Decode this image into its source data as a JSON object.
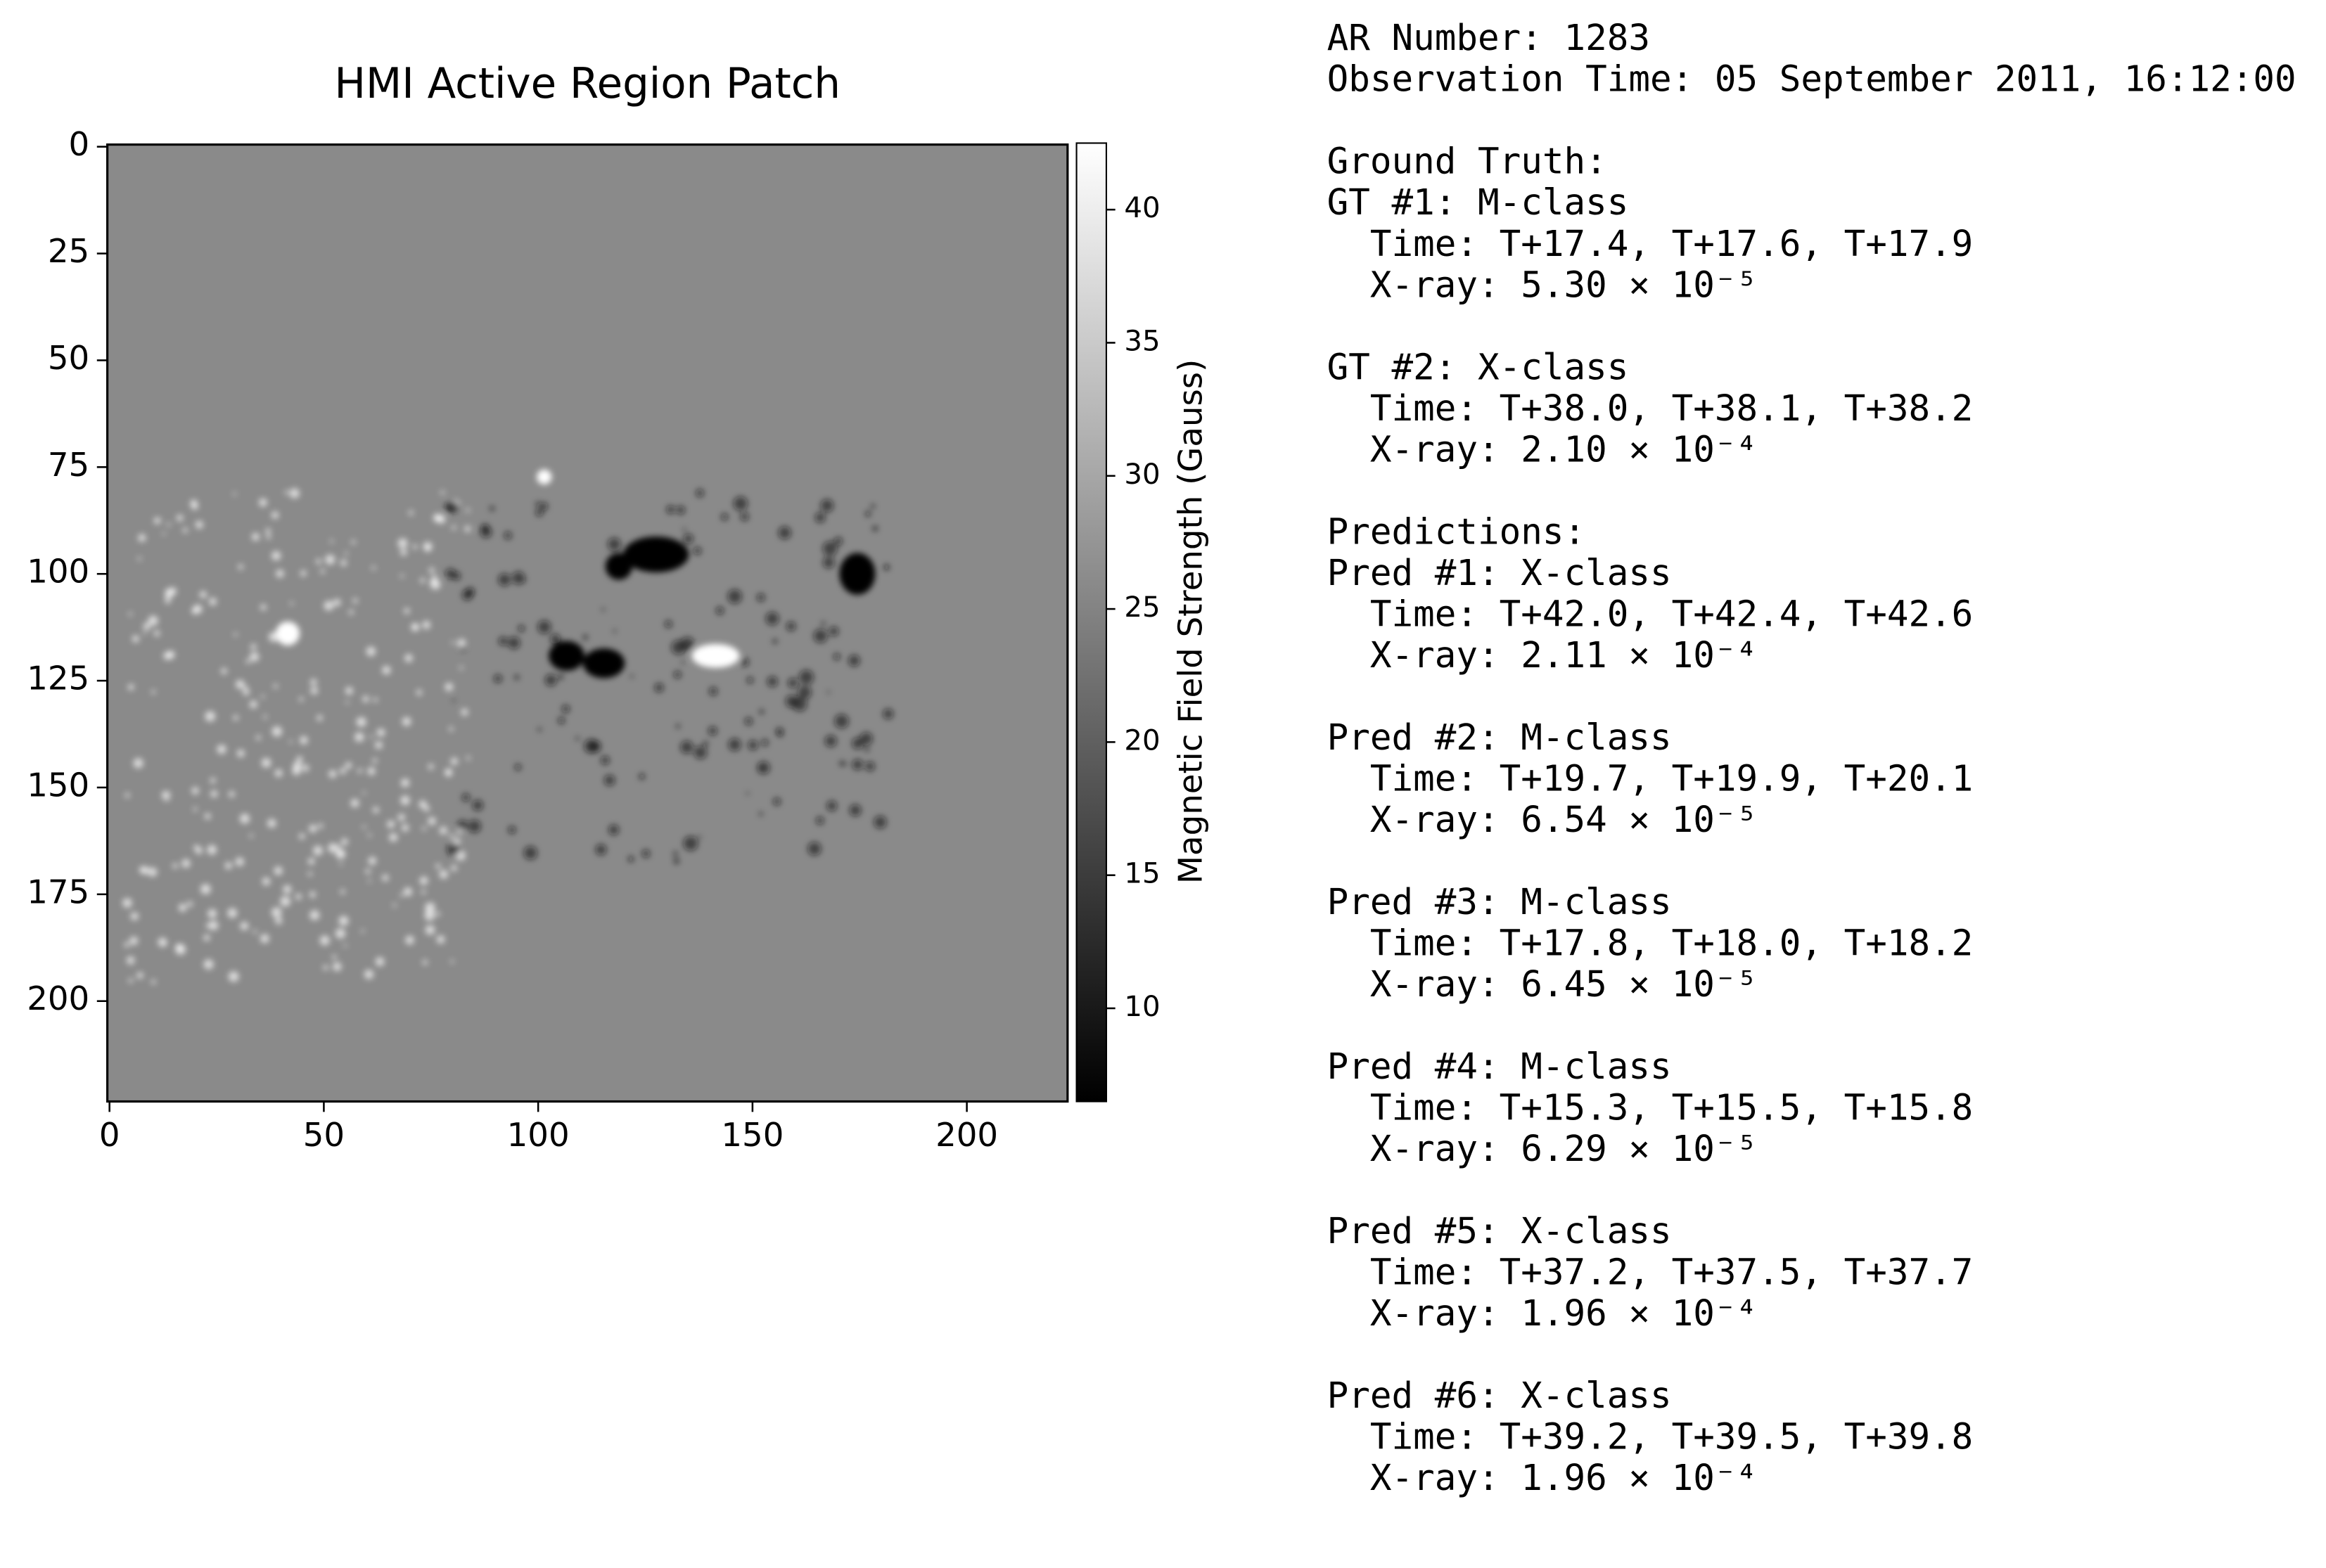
{
  "chart_data": {
    "type": "image",
    "title": "HMI Active Region Patch",
    "xlim": [
      -0.5,
      223.5
    ],
    "xticks": [
      0,
      50,
      100,
      150,
      200
    ],
    "ylim": [
      -0.5,
      223.5
    ],
    "yticks": [
      0,
      25,
      50,
      75,
      100,
      125,
      150,
      175,
      200
    ],
    "y_inverted": true,
    "colorbar": {
      "label": "Magnetic Field Strength (Gauss)",
      "lim": [
        6.5,
        42.5
      ],
      "ticks": [
        10,
        15,
        20,
        25,
        30,
        35,
        40
      ],
      "cmap": "gray"
    }
  },
  "text_panel": {
    "header": [
      "AR Number: 1283",
      "Observation Time: 05 September 2011, 16:12:00"
    ],
    "blocks": [
      [
        "Ground Truth:",
        "GT #1: M-class",
        "  Time: T+17.4, T+17.6, T+17.9",
        "  X-ray: 5.30 × 10⁻⁵"
      ],
      [
        "GT #2: X-class",
        "  Time: T+38.0, T+38.1, T+38.2",
        "  X-ray: 2.10 × 10⁻⁴"
      ],
      [
        "Predictions:",
        "Pred #1: X-class",
        "  Time: T+42.0, T+42.4, T+42.6",
        "  X-ray: 2.11 × 10⁻⁴"
      ],
      [
        "Pred #2: M-class",
        "  Time: T+19.7, T+19.9, T+20.1",
        "  X-ray: 6.54 × 10⁻⁵"
      ],
      [
        "Pred #3: M-class",
        "  Time: T+17.8, T+18.0, T+18.2",
        "  X-ray: 6.45 × 10⁻⁵"
      ],
      [
        "Pred #4: M-class",
        "  Time: T+15.3, T+15.5, T+15.8",
        "  X-ray: 6.29 × 10⁻⁵"
      ],
      [
        "Pred #5: X-class",
        "  Time: T+37.2, T+37.5, T+37.7",
        "  X-ray: 1.96 × 10⁻⁴"
      ],
      [
        "Pred #6: X-class",
        "  Time: T+39.2, T+39.5, T+39.8",
        "  X-ray: 1.96 × 10⁻⁴"
      ]
    ]
  }
}
